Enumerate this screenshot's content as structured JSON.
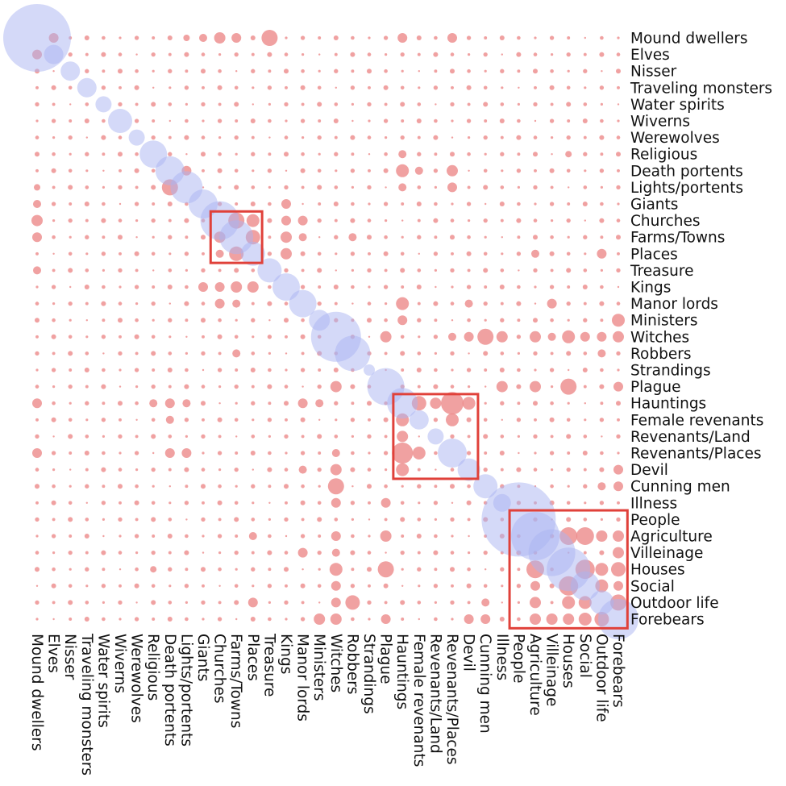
{
  "chart_data": {
    "type": "bubble-matrix",
    "labels": [
      "Mound dwellers",
      "Elves",
      "Nisser",
      "Traveling monsters",
      "Water spirits",
      "Wiverns",
      "Werewolves",
      "Religious",
      "Death portents",
      "Lights/portents",
      "Giants",
      "Churches",
      "Farms/Towns",
      "Places",
      "Treasure",
      "Kings",
      "Manor lords",
      "Ministers",
      "Witches",
      "Robbers",
      "Strandings",
      "Plague",
      "Hauntings",
      "Female revenants",
      "Revenants/Land",
      "Revenants/Places",
      "Devil",
      "Cunning men",
      "Illness",
      "People",
      "Agriculture",
      "Villeinage",
      "Houses",
      "Social",
      "Outdoor life",
      "Forebears"
    ],
    "diagonal_sizes": [
      42,
      12,
      12,
      12,
      10,
      15,
      10,
      17,
      18,
      20,
      18,
      24,
      21,
      15,
      15,
      17,
      17,
      13,
      31,
      22,
      7,
      23,
      19,
      12,
      10,
      18,
      14,
      15,
      11,
      46,
      30,
      29,
      27,
      18,
      15,
      25
    ],
    "offdiagonal": [
      {
        "r": 0,
        "c": 1,
        "v": 6
      },
      {
        "r": 0,
        "c": 10,
        "v": 5
      },
      {
        "r": 0,
        "c": 11,
        "v": 7
      },
      {
        "r": 0,
        "c": 12,
        "v": 6
      },
      {
        "r": 0,
        "c": 14,
        "v": 10
      },
      {
        "r": 0,
        "c": 22,
        "v": 6
      },
      {
        "r": 0,
        "c": 25,
        "v": 6
      },
      {
        "r": 0,
        "c": 9,
        "v": 4
      },
      {
        "r": 1,
        "c": 0,
        "v": 6
      },
      {
        "r": 7,
        "c": 22,
        "v": 5
      },
      {
        "r": 7,
        "c": 32,
        "v": 4
      },
      {
        "r": 8,
        "c": 22,
        "v": 8
      },
      {
        "r": 8,
        "c": 25,
        "v": 7
      },
      {
        "r": 8,
        "c": 9,
        "v": 6
      },
      {
        "r": 9,
        "c": 8,
        "v": 10
      },
      {
        "r": 9,
        "c": 25,
        "v": 6
      },
      {
        "r": 9,
        "c": 22,
        "v": 5
      },
      {
        "r": 11,
        "c": 12,
        "v": 10
      },
      {
        "r": 11,
        "c": 13,
        "v": 8
      },
      {
        "r": 11,
        "c": 16,
        "v": 6
      },
      {
        "r": 12,
        "c": 11,
        "v": 7
      },
      {
        "r": 12,
        "c": 13,
        "v": 9
      },
      {
        "r": 12,
        "c": 16,
        "v": 5
      },
      {
        "r": 13,
        "c": 11,
        "v": 5
      },
      {
        "r": 13,
        "c": 12,
        "v": 9
      },
      {
        "r": 14,
        "c": 0,
        "v": 5
      },
      {
        "r": 15,
        "c": 10,
        "v": 6
      },
      {
        "r": 15,
        "c": 11,
        "v": 6
      },
      {
        "r": 15,
        "c": 12,
        "v": 7
      },
      {
        "r": 15,
        "c": 13,
        "v": 7
      },
      {
        "r": 16,
        "c": 22,
        "v": 8
      },
      {
        "r": 16,
        "c": 31,
        "v": 6
      },
      {
        "r": 17,
        "c": 22,
        "v": 6
      },
      {
        "r": 17,
        "c": 35,
        "v": 8
      },
      {
        "r": 18,
        "c": 21,
        "v": 7
      },
      {
        "r": 18,
        "c": 27,
        "v": 10
      },
      {
        "r": 18,
        "c": 28,
        "v": 7
      },
      {
        "r": 18,
        "c": 30,
        "v": 7
      },
      {
        "r": 18,
        "c": 32,
        "v": 8
      },
      {
        "r": 18,
        "c": 33,
        "v": 6
      },
      {
        "r": 18,
        "c": 34,
        "v": 6
      },
      {
        "r": 18,
        "c": 26,
        "v": 6
      },
      {
        "r": 18,
        "c": 25,
        "v": 5
      },
      {
        "r": 19,
        "c": 34,
        "v": 5
      },
      {
        "r": 19,
        "c": 12,
        "v": 5
      },
      {
        "r": 21,
        "c": 28,
        "v": 7
      },
      {
        "r": 22,
        "c": 23,
        "v": 9
      },
      {
        "r": 22,
        "c": 25,
        "v": 14
      },
      {
        "r": 22,
        "c": 8,
        "v": 6
      },
      {
        "r": 22,
        "c": 9,
        "v": 5
      },
      {
        "r": 22,
        "c": 17,
        "v": 5
      },
      {
        "r": 22,
        "c": 16,
        "v": 6
      },
      {
        "r": 23,
        "c": 22,
        "v": 8
      },
      {
        "r": 23,
        "c": 25,
        "v": 8
      },
      {
        "r": 23,
        "c": 8,
        "v": 5
      },
      {
        "r": 24,
        "c": 22,
        "v": 7
      },
      {
        "r": 25,
        "c": 22,
        "v": 13
      },
      {
        "r": 25,
        "c": 8,
        "v": 6
      },
      {
        "r": 25,
        "c": 25,
        "v": 5
      },
      {
        "r": 26,
        "c": 22,
        "v": 8
      },
      {
        "r": 26,
        "c": 18,
        "v": 7
      },
      {
        "r": 26,
        "c": 35,
        "v": 6
      },
      {
        "r": 26,
        "c": 16,
        "v": 5
      },
      {
        "r": 27,
        "c": 18,
        "v": 10
      },
      {
        "r": 27,
        "c": 34,
        "v": 5
      },
      {
        "r": 28,
        "c": 18,
        "v": 6
      },
      {
        "r": 28,
        "c": 21,
        "v": 6
      },
      {
        "r": 30,
        "c": 33,
        "v": 11
      },
      {
        "r": 30,
        "c": 34,
        "v": 7
      },
      {
        "r": 30,
        "c": 35,
        "v": 7
      },
      {
        "r": 30,
        "c": 21,
        "v": 7
      },
      {
        "r": 30,
        "c": 18,
        "v": 6
      },
      {
        "r": 30,
        "c": 13,
        "v": 5
      },
      {
        "r": 31,
        "c": 35,
        "v": 7
      },
      {
        "r": 31,
        "c": 18,
        "v": 5
      },
      {
        "r": 32,
        "c": 30,
        "v": 11
      },
      {
        "r": 32,
        "c": 21,
        "v": 10
      },
      {
        "r": 32,
        "c": 34,
        "v": 8
      },
      {
        "r": 32,
        "c": 35,
        "v": 9
      },
      {
        "r": 32,
        "c": 33,
        "v": 12
      },
      {
        "r": 33,
        "c": 30,
        "v": 6
      },
      {
        "r": 33,
        "c": 35,
        "v": 6
      },
      {
        "r": 34,
        "c": 33,
        "v": 8
      },
      {
        "r": 34,
        "c": 35,
        "v": 10
      },
      {
        "r": 34,
        "c": 19,
        "v": 9
      },
      {
        "r": 34,
        "c": 13,
        "v": 6
      },
      {
        "r": 35,
        "c": 34,
        "v": 9
      },
      {
        "r": 35,
        "c": 33,
        "v": 8
      },
      {
        "r": 35,
        "c": 32,
        "v": 7
      },
      {
        "r": 35,
        "c": 18,
        "v": 7
      },
      {
        "r": 35,
        "c": 17,
        "v": 7
      },
      {
        "r": 35,
        "c": 21,
        "v": 6
      },
      {
        "r": 35,
        "c": 27,
        "v": 6
      }
    ],
    "highlight_boxes": [
      {
        "from": 11,
        "to": 13
      },
      {
        "from": 22,
        "to": 26
      },
      {
        "from": 29,
        "to": 35
      }
    ],
    "colors": {
      "diagonal": "#aab4f2",
      "offdiagonal": "#ec8a8a",
      "box": "#e0413a"
    }
  }
}
